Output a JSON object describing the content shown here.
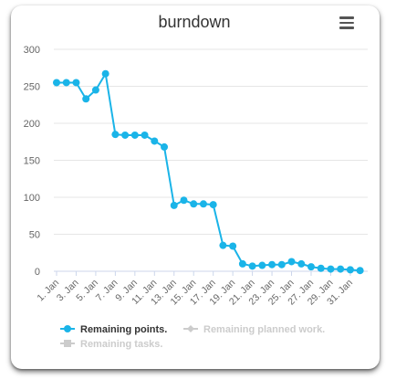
{
  "chart_data": {
    "type": "line",
    "title": "burndown",
    "y_ticks": [
      "300",
      "250",
      "200",
      "150",
      "100",
      "50",
      "0"
    ],
    "ylim": [
      0,
      300
    ],
    "x_ticks": [
      "1. Jan",
      "3. Jan",
      "5. Jan",
      "7. Jan",
      "9. Jan",
      "11. Jan",
      "13. Jan",
      "15. Jan",
      "17. Jan",
      "19. Jan",
      "21. Jan",
      "23. Jan",
      "25. Jan",
      "27. Jan",
      "29. Jan",
      "31. Jan"
    ],
    "grid": true,
    "legend_position": "bottom",
    "series": [
      {
        "name": "Remaining points.",
        "visible": true,
        "color": "#1ab4e8",
        "x": [
          "1. Jan",
          "2. Jan",
          "3. Jan",
          "4. Jan",
          "5. Jan",
          "6. Jan",
          "7. Jan",
          "8. Jan",
          "9. Jan",
          "10. Jan",
          "11. Jan",
          "12. Jan",
          "13. Jan",
          "14. Jan",
          "15. Jan",
          "16. Jan",
          "17. Jan",
          "18. Jan",
          "19. Jan",
          "20. Jan",
          "21. Jan",
          "22. Jan",
          "23. Jan",
          "24. Jan",
          "25. Jan",
          "26. Jan",
          "27. Jan",
          "28. Jan",
          "29. Jan",
          "30. Jan",
          "31. Jan",
          "1. Feb"
        ],
        "values": [
          255,
          255,
          255,
          233,
          245,
          267,
          185,
          184,
          184,
          184,
          176,
          168,
          89,
          96,
          91,
          91,
          90,
          35,
          34,
          10,
          7,
          8,
          9,
          9,
          13,
          10,
          6,
          4,
          3,
          3,
          2,
          1
        ]
      },
      {
        "name": "Remaining planned work.",
        "visible": false,
        "color": "#cccccc"
      },
      {
        "name": "Remaining tasks.",
        "visible": false,
        "color": "#cccccc"
      }
    ]
  },
  "ui": {
    "menu_icon": "hamburger-menu-icon"
  }
}
